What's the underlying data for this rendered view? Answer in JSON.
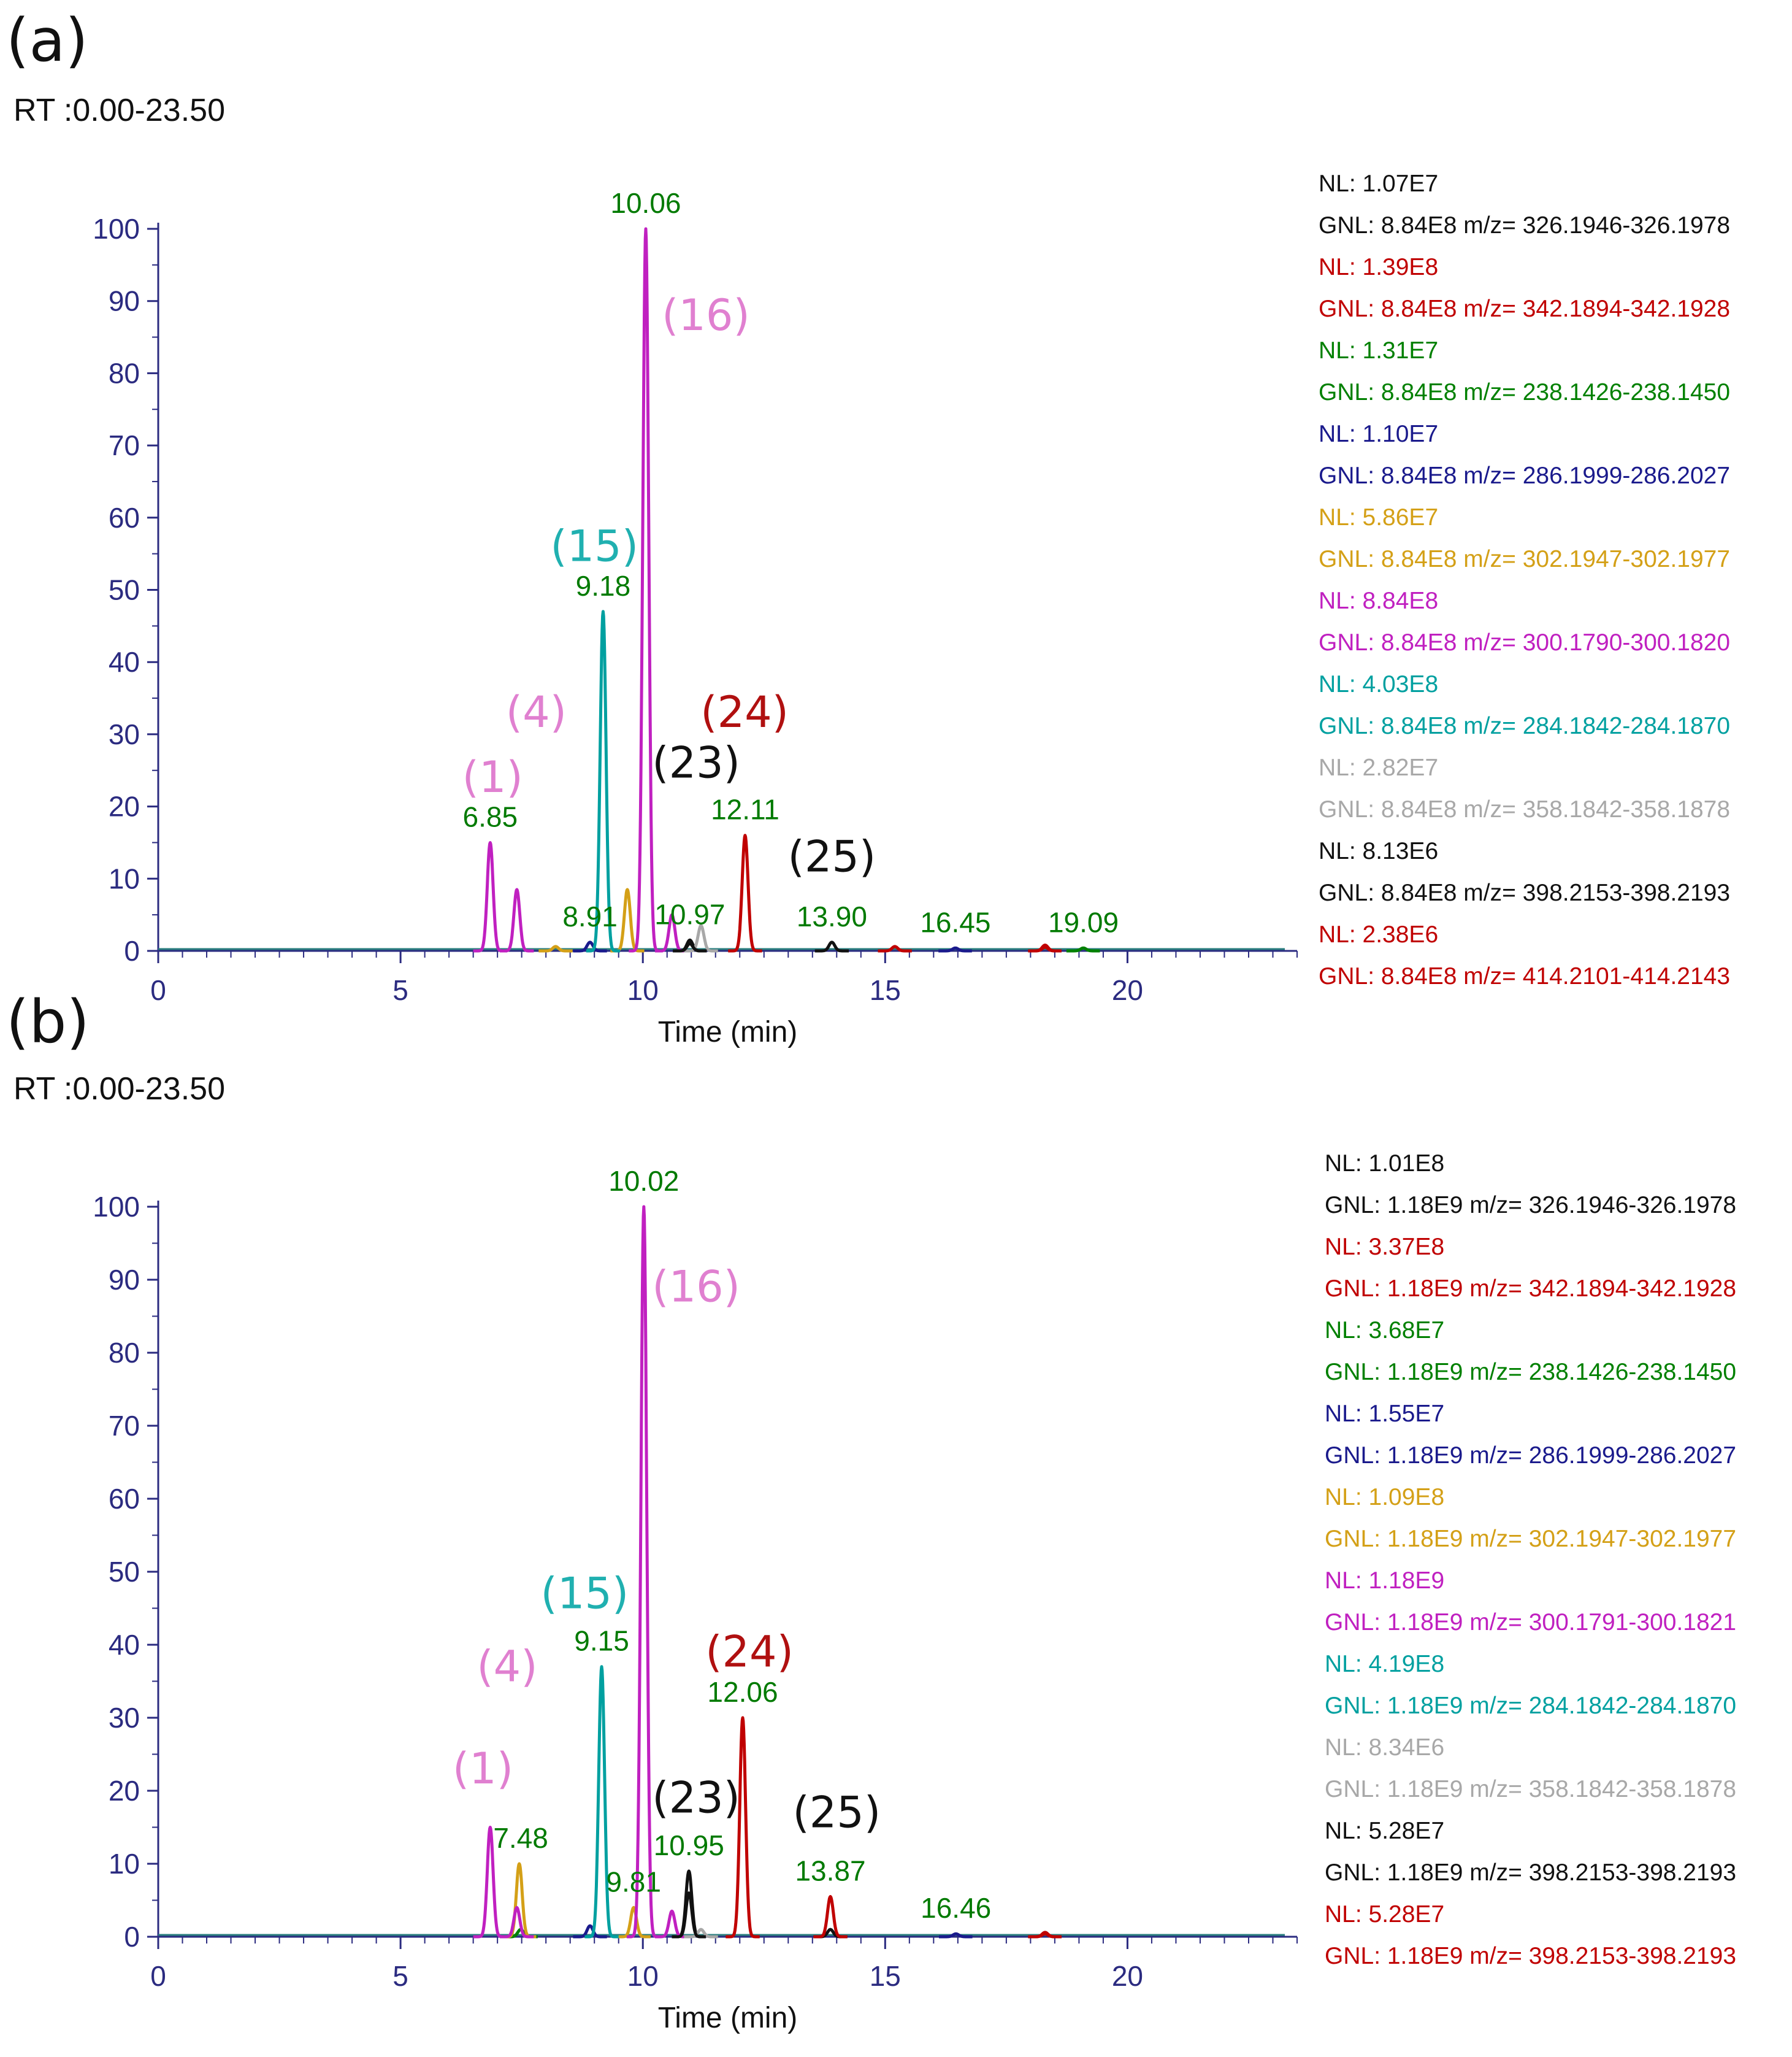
{
  "chart_data": [
    {
      "type": "line",
      "panel_label": "(a)",
      "range_label": "RT :0.00-23.50",
      "xlabel": "Time (min)",
      "ylabel": "",
      "xlim": [
        0,
        23.5
      ],
      "ylim": [
        0,
        100
      ],
      "x_ticks": [
        "0",
        "5",
        "10",
        "15",
        "20"
      ],
      "y_ticks": [
        "0",
        "10",
        "20",
        "30",
        "40",
        "50",
        "60",
        "70",
        "80",
        "90",
        "100"
      ],
      "series": [
        {
          "name": "m/z 326.1946-326.1978",
          "color": "#111111",
          "peaks": [
            [
              10.97,
              1.5
            ],
            [
              13.9,
              1.2
            ]
          ]
        },
        {
          "name": "m/z 342.1894-342.1928",
          "color": "#c00000",
          "peaks": [
            [
              12.11,
              16
            ],
            [
              15.2,
              0.6
            ],
            [
              18.3,
              0.8
            ]
          ]
        },
        {
          "name": "m/z 238.1426-238.1450",
          "color": "#008000",
          "peaks": [
            [
              19.09,
              0.4
            ]
          ]
        },
        {
          "name": "m/z 286.1999-286.2027",
          "color": "#1a1a8c",
          "peaks": [
            [
              8.91,
              1.2
            ],
            [
              16.45,
              0.4
            ]
          ]
        },
        {
          "name": "m/z 302.1947-302.1977",
          "color": "#d4a017",
          "peaks": [
            [
              8.2,
              0.6
            ],
            [
              9.68,
              8.5
            ]
          ]
        },
        {
          "name": "m/z 300.1790-300.1820",
          "color": "#c020c0",
          "peaks": [
            [
              6.85,
              15
            ],
            [
              7.4,
              8.5
            ],
            [
              10.06,
              100
            ],
            [
              10.6,
              5
            ]
          ]
        },
        {
          "name": "m/z 284.1842-284.1870",
          "color": "#00a0a0",
          "peaks": [
            [
              9.18,
              47
            ]
          ]
        },
        {
          "name": "m/z 358.1842-358.1878",
          "color": "#a8a8a8",
          "peaks": [
            [
              11.2,
              3.5
            ]
          ]
        },
        {
          "name": "m/z 398.2153-398.2193",
          "color": "#111111",
          "peaks": [
            [
              10.97,
              1.0
            ]
          ]
        },
        {
          "name": "m/z 414.2101-414.2143",
          "color": "#c00000",
          "peaks": [
            [
              18.3,
              0.5
            ]
          ]
        }
      ],
      "peak_labels": [
        {
          "text": "6.85",
          "x": 6.85,
          "y": 15
        },
        {
          "text": "8.91",
          "x": 8.91,
          "y": 1.2
        },
        {
          "text": "9.18",
          "x": 9.18,
          "y": 47
        },
        {
          "text": "10.06",
          "x": 10.06,
          "y": 100
        },
        {
          "text": "10.97",
          "x": 10.97,
          "y": 1.5
        },
        {
          "text": "12.11",
          "x": 12.11,
          "y": 16
        },
        {
          "text": "13.90",
          "x": 13.9,
          "y": 1.2
        },
        {
          "text": "16.45",
          "x": 16.45,
          "y": 0.4
        },
        {
          "text": "19.09",
          "x": 19.09,
          "y": 0.4
        }
      ],
      "annotations": [
        {
          "text": "(1)",
          "color": "#e080d0",
          "x": 6.9,
          "y": 22
        },
        {
          "text": "(4)",
          "color": "#e080d0",
          "x": 7.8,
          "y": 31
        },
        {
          "text": "(15)",
          "color": "#20b0b0",
          "x": 9.0,
          "y": 54
        },
        {
          "text": "(16)",
          "color": "#e080d0",
          "x": 11.3,
          "y": 86
        },
        {
          "text": "(23)",
          "color": "#111111",
          "x": 11.1,
          "y": 24
        },
        {
          "text": "(24)",
          "color": "#b01010",
          "x": 12.1,
          "y": 31
        },
        {
          "text": "(25)",
          "color": "#111111",
          "x": 13.9,
          "y": 11
        }
      ],
      "legend": [
        {
          "nl": "NL: 1.07E7",
          "gnl": "GNL: 8.84E8 m/z= 326.1946-326.1978",
          "color": "#111111"
        },
        {
          "nl": "NL: 1.39E8",
          "gnl": "GNL: 8.84E8 m/z= 342.1894-342.1928",
          "color": "#c00000"
        },
        {
          "nl": "NL: 1.31E7",
          "gnl": "GNL: 8.84E8 m/z= 238.1426-238.1450",
          "color": "#008000"
        },
        {
          "nl": "NL: 1.10E7",
          "gnl": "GNL: 8.84E8 m/z= 286.1999-286.2027",
          "color": "#1a1a8c"
        },
        {
          "nl": "NL: 5.86E7",
          "gnl": "GNL: 8.84E8 m/z= 302.1947-302.1977",
          "color": "#d4a017"
        },
        {
          "nl": "NL: 8.84E8",
          "gnl": "GNL: 8.84E8 m/z= 300.1790-300.1820",
          "color": "#c020c0"
        },
        {
          "nl": "NL: 4.03E8",
          "gnl": "GNL: 8.84E8 m/z= 284.1842-284.1870",
          "color": "#00a0a0"
        },
        {
          "nl": "NL: 2.82E7",
          "gnl": "GNL: 8.84E8 m/z= 358.1842-358.1878",
          "color": "#a8a8a8"
        },
        {
          "nl": "NL: 8.13E6",
          "gnl": "GNL: 8.84E8 m/z= 398.2153-398.2193",
          "color": "#111111"
        },
        {
          "nl": "NL: 2.38E6",
          "gnl": "GNL: 8.84E8 m/z= 414.2101-414.2143",
          "color": "#c00000"
        }
      ]
    },
    {
      "type": "line",
      "panel_label": "(b)",
      "range_label": "RT :0.00-23.50",
      "xlabel": "Time (min)",
      "ylabel": "",
      "xlim": [
        0,
        23.5
      ],
      "ylim": [
        0,
        100
      ],
      "x_ticks": [
        "0",
        "5",
        "10",
        "15",
        "20"
      ],
      "y_ticks": [
        "0",
        "10",
        "20",
        "30",
        "40",
        "50",
        "60",
        "70",
        "80",
        "90",
        "100"
      ],
      "series": [
        {
          "name": "m/z 326.1946-326.1978",
          "color": "#111111",
          "peaks": [
            [
              10.95,
              9
            ],
            [
              13.87,
              1.0
            ]
          ]
        },
        {
          "name": "m/z 342.1894-342.1928",
          "color": "#c00000",
          "peaks": [
            [
              12.06,
              30
            ],
            [
              13.87,
              5.5
            ],
            [
              18.3,
              0.6
            ]
          ]
        },
        {
          "name": "m/z 238.1426-238.1450",
          "color": "#008000",
          "peaks": [
            [
              7.48,
              1.0
            ]
          ]
        },
        {
          "name": "m/z 286.1999-286.2027",
          "color": "#1a1a8c",
          "peaks": [
            [
              8.91,
              1.5
            ],
            [
              16.46,
              0.4
            ]
          ]
        },
        {
          "name": "m/z 302.1947-302.1977",
          "color": "#d4a017",
          "peaks": [
            [
              7.45,
              10
            ],
            [
              9.81,
              4
            ]
          ]
        },
        {
          "name": "m/z 300.1791-300.1821",
          "color": "#c020c0",
          "peaks": [
            [
              6.85,
              15
            ],
            [
              7.4,
              4
            ],
            [
              10.02,
              100
            ],
            [
              10.6,
              3.5
            ]
          ]
        },
        {
          "name": "m/z 284.1842-284.1870",
          "color": "#00a0a0",
          "peaks": [
            [
              9.15,
              37
            ]
          ]
        },
        {
          "name": "m/z 358.1842-358.1878",
          "color": "#a8a8a8",
          "peaks": [
            [
              11.2,
              1.0
            ]
          ]
        },
        {
          "name": "m/z 398.2153-398.2193",
          "color": "#111111",
          "peaks": [
            [
              10.95,
              6
            ]
          ]
        },
        {
          "name": "m/z 398.2153-398.2193 (red)",
          "color": "#c00000",
          "peaks": [
            [
              18.3,
              0.4
            ]
          ]
        }
      ],
      "peak_labels": [
        {
          "text": "7.48",
          "x": 7.48,
          "y": 10
        },
        {
          "text": "9.15",
          "x": 9.15,
          "y": 37
        },
        {
          "text": "9.81",
          "x": 9.81,
          "y": 4
        },
        {
          "text": "10.02",
          "x": 10.02,
          "y": 100
        },
        {
          "text": "10.95",
          "x": 10.95,
          "y": 9
        },
        {
          "text": "12.06",
          "x": 12.06,
          "y": 30
        },
        {
          "text": "13.87",
          "x": 13.87,
          "y": 5.5
        },
        {
          "text": "16.46",
          "x": 16.46,
          "y": 0.4
        }
      ],
      "annotations": [
        {
          "text": "(1)",
          "color": "#e080d0",
          "x": 6.7,
          "y": 21
        },
        {
          "text": "(4)",
          "color": "#e080d0",
          "x": 7.2,
          "y": 35
        },
        {
          "text": "(15)",
          "color": "#20b0b0",
          "x": 8.8,
          "y": 45
        },
        {
          "text": "(16)",
          "color": "#e080d0",
          "x": 11.1,
          "y": 87
        },
        {
          "text": "(23)",
          "color": "#111111",
          "x": 11.1,
          "y": 17
        },
        {
          "text": "(24)",
          "color": "#b01010",
          "x": 12.2,
          "y": 37
        },
        {
          "text": "(25)",
          "color": "#111111",
          "x": 14.0,
          "y": 15
        }
      ],
      "legend": [
        {
          "nl": "NL: 1.01E8",
          "gnl": "GNL: 1.18E9 m/z= 326.1946-326.1978",
          "color": "#111111"
        },
        {
          "nl": "NL: 3.37E8",
          "gnl": "GNL: 1.18E9 m/z= 342.1894-342.1928",
          "color": "#c00000"
        },
        {
          "nl": "NL: 3.68E7",
          "gnl": "GNL: 1.18E9 m/z= 238.1426-238.1450",
          "color": "#008000"
        },
        {
          "nl": "NL: 1.55E7",
          "gnl": "GNL: 1.18E9 m/z= 286.1999-286.2027",
          "color": "#1a1a8c"
        },
        {
          "nl": "NL: 1.09E8",
          "gnl": "GNL: 1.18E9 m/z= 302.1947-302.1977",
          "color": "#d4a017"
        },
        {
          "nl": "NL: 1.18E9",
          "gnl": "GNL: 1.18E9 m/z= 300.1791-300.1821",
          "color": "#c020c0"
        },
        {
          "nl": "NL: 4.19E8",
          "gnl": "GNL: 1.18E9 m/z= 284.1842-284.1870",
          "color": "#00a0a0"
        },
        {
          "nl": "NL: 8.34E6",
          "gnl": "GNL: 1.18E9 m/z= 358.1842-358.1878",
          "color": "#a8a8a8"
        },
        {
          "nl": "NL: 5.28E7",
          "gnl": "GNL: 1.18E9 m/z= 398.2153-398.2193",
          "color": "#111111"
        },
        {
          "nl": "NL: 5.28E7",
          "gnl": "GNL: 1.18E9 m/z= 398.2153-398.2193",
          "color": "#c00000"
        }
      ]
    }
  ]
}
